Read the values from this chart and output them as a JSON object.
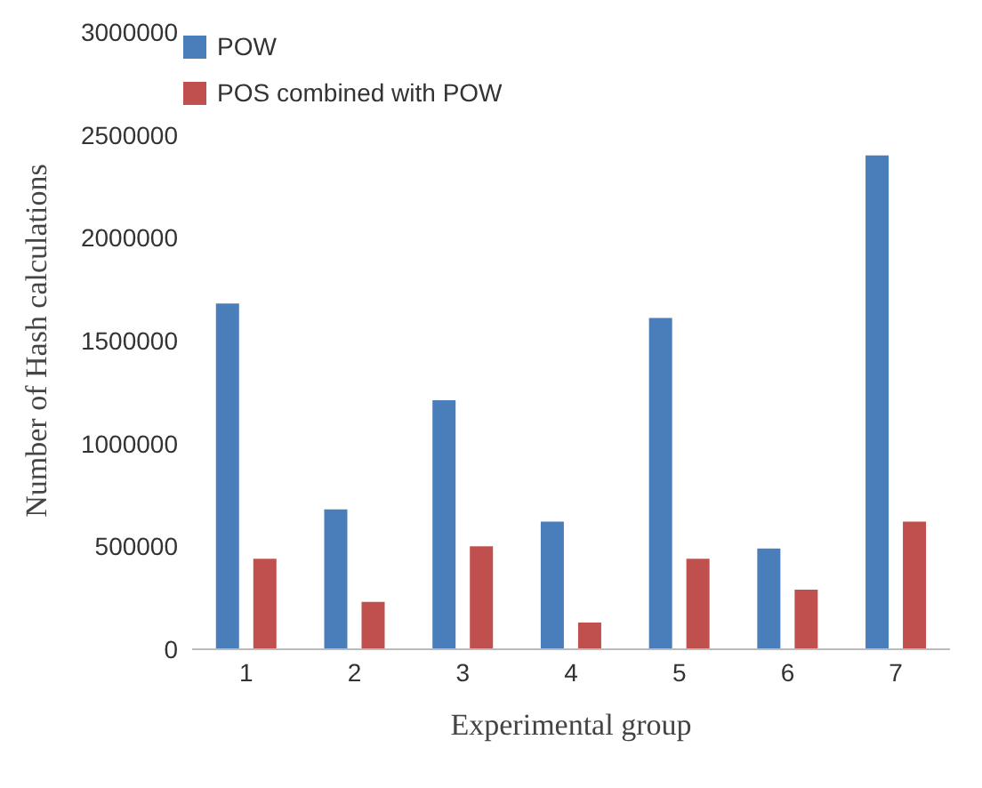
{
  "chart_data": {
    "type": "bar",
    "xlabel": "Experimental group",
    "ylabel": "Number of Hash calculations",
    "categories": [
      "1",
      "2",
      "3",
      "4",
      "5",
      "6",
      "7"
    ],
    "series": [
      {
        "name": "POW",
        "color": "#4a7ebb",
        "values": [
          1680000,
          680000,
          1210000,
          620000,
          1610000,
          490000,
          2400000
        ]
      },
      {
        "name": "POS combined with POW",
        "color": "#c0504d",
        "values": [
          440000,
          230000,
          500000,
          130000,
          440000,
          290000,
          620000
        ]
      }
    ],
    "ylim": [
      0,
      3000000
    ],
    "yticks": [
      0,
      500000,
      1000000,
      1500000,
      2000000,
      2500000,
      3000000
    ],
    "grid": false,
    "legend": "top left"
  }
}
